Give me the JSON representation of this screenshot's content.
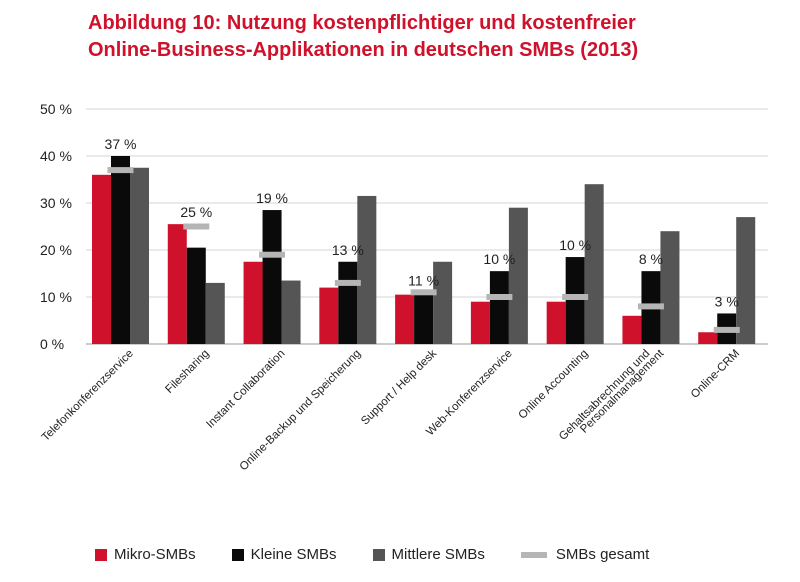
{
  "title": {
    "line1": "Abbildung 10: Nutzung kostenpflichtiger und kostenfreier",
    "line2": "Online-Business-Applikationen in deutschen SMBs (2013)"
  },
  "colors": {
    "title": "#d0112b",
    "mikro": "#d0112b",
    "kleine": "#0a0a0a",
    "mittlere": "#555555",
    "gesamt": "#b5b5b5",
    "grid": "#d6d6d6"
  },
  "chart_data": {
    "type": "bar",
    "title": "Abbildung 10: Nutzung kostenpflichtiger und kostenfreier Online-Business-Applikationen in deutschen SMBs (2013)",
    "xlabel": "",
    "ylabel": "",
    "ylim": [
      0,
      50
    ],
    "yticks": [
      0,
      10,
      20,
      30,
      40,
      50
    ],
    "ytick_labels": [
      "0 %",
      "10 %",
      "20 %",
      "30 %",
      "40 %",
      "50 %"
    ],
    "grid": true,
    "categories": [
      "Telefonkonferenzservice",
      "Filesharing",
      "Instant Collaboration",
      "Online-Backup und Speicherung",
      "Support / Help desk",
      "Web-Konferenzservice",
      "Online Accounting",
      "Gehaltsabrechnung und Personalmanagement",
      "Online-CRM"
    ],
    "category_lines": [
      [
        "Telefonkonferenzservice"
      ],
      [
        "Filesharing"
      ],
      [
        "Instant Collaboration"
      ],
      [
        "Online-Backup und Speicherung"
      ],
      [
        "Support / Help desk"
      ],
      [
        "Web-Konferenzservice"
      ],
      [
        "Online Accounting"
      ],
      [
        "Gehaltsabrechnung und",
        "Personalmanagement"
      ],
      [
        "Online-CRM"
      ]
    ],
    "series": [
      {
        "name": "Mikro-SMBs",
        "values": [
          36,
          25.5,
          17.5,
          12,
          10.5,
          9,
          9,
          6,
          2.5
        ]
      },
      {
        "name": "Kleine SMBs",
        "values": [
          40,
          20.5,
          28.5,
          17.5,
          10.5,
          15.5,
          18.5,
          15.5,
          6.5
        ]
      },
      {
        "name": "Mittlere SMBs",
        "values": [
          37.5,
          13,
          13.5,
          31.5,
          17.5,
          29,
          34,
          24,
          27
        ]
      }
    ],
    "overall": {
      "name": "SMBs gesamt",
      "values": [
        37,
        25,
        19,
        13,
        11,
        10,
        10,
        8,
        3
      ]
    },
    "overall_labels": [
      "37 %",
      "25 %",
      "19 %",
      "13 %",
      "11 %",
      "10 %",
      "10 %",
      "8 %",
      "3 %"
    ],
    "legend_position": "bottom"
  }
}
